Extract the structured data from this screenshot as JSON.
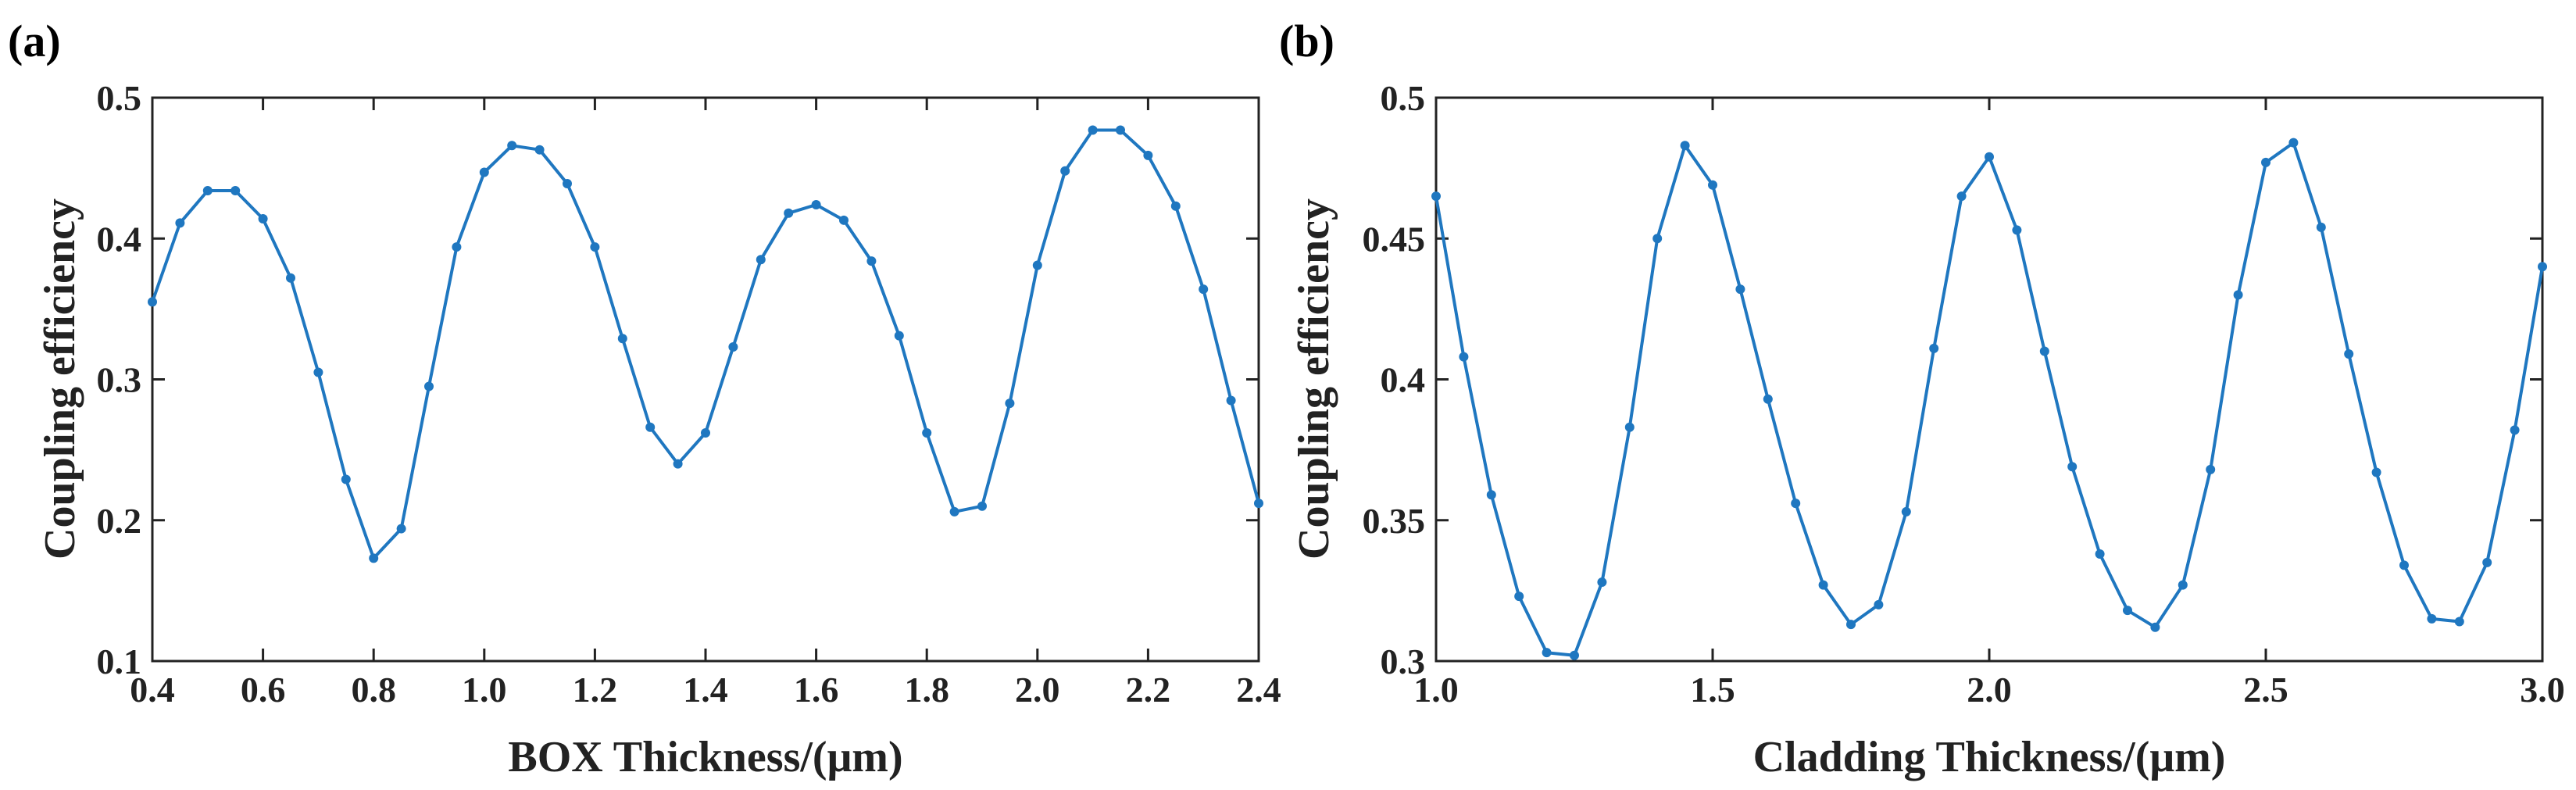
{
  "chart_data": [
    {
      "panel_label": "(a)",
      "type": "line",
      "title": "",
      "xlabel": "BOX Thickness/(μm)",
      "ylabel": "Coupling efficiency",
      "xlim": [
        0.4,
        2.4
      ],
      "ylim": [
        0.1,
        0.5
      ],
      "xticks": [
        0.4,
        0.6,
        0.8,
        1.0,
        1.2,
        1.4,
        1.6,
        1.8,
        2.0,
        2.2,
        2.4
      ],
      "xtick_labels": [
        "0.4",
        "0.6",
        "0.8",
        "1.0",
        "1.2",
        "1.4",
        "1.6",
        "1.8",
        "2.0",
        "2.2",
        "2.4"
      ],
      "yticks": [
        0.1,
        0.2,
        0.3,
        0.4,
        0.5
      ],
      "ytick_labels": [
        "0.1",
        "0.2",
        "0.3",
        "0.4",
        "0.5"
      ],
      "grid": false,
      "legend": "none",
      "color": "#1f77c0",
      "series": [
        {
          "name": "Coupling efficiency",
          "x": [
            0.4,
            0.45,
            0.5,
            0.55,
            0.6,
            0.65,
            0.7,
            0.75,
            0.8,
            0.85,
            0.9,
            0.95,
            1.0,
            1.05,
            1.1,
            1.15,
            1.2,
            1.25,
            1.3,
            1.35,
            1.4,
            1.45,
            1.5,
            1.55,
            1.6,
            1.65,
            1.7,
            1.75,
            1.8,
            1.85,
            1.9,
            1.95,
            2.0,
            2.05,
            2.1,
            2.15,
            2.2,
            2.25,
            2.3,
            2.35,
            2.4
          ],
          "y": [
            0.355,
            0.411,
            0.434,
            0.434,
            0.414,
            0.372,
            0.305,
            0.229,
            0.173,
            0.194,
            0.295,
            0.394,
            0.447,
            0.466,
            0.463,
            0.439,
            0.394,
            0.329,
            0.266,
            0.24,
            0.262,
            0.323,
            0.385,
            0.418,
            0.424,
            0.413,
            0.384,
            0.331,
            0.262,
            0.206,
            0.21,
            0.283,
            0.381,
            0.448,
            0.477,
            0.477,
            0.459,
            0.423,
            0.364,
            0.285,
            0.212
          ]
        }
      ]
    },
    {
      "panel_label": "(b)",
      "type": "line",
      "title": "",
      "xlabel": "Cladding Thickness/(μm)",
      "ylabel": "Coupling efficiency",
      "xlim": [
        1.0,
        3.0
      ],
      "ylim": [
        0.3,
        0.5
      ],
      "xticks": [
        1.0,
        1.5,
        2.0,
        2.5,
        3.0
      ],
      "xtick_labels": [
        "1.0",
        "1.5",
        "2.0",
        "2.5",
        "3.0"
      ],
      "yticks": [
        0.3,
        0.35,
        0.4,
        0.45,
        0.5
      ],
      "ytick_labels": [
        "0.3",
        "0.35",
        "0.4",
        "0.45",
        "0.5"
      ],
      "grid": false,
      "legend": "none",
      "color": "#1f77c0",
      "series": [
        {
          "name": "Coupling efficiency",
          "x": [
            1.0,
            1.05,
            1.1,
            1.15,
            1.2,
            1.25,
            1.3,
            1.35,
            1.4,
            1.45,
            1.5,
            1.55,
            1.6,
            1.65,
            1.7,
            1.75,
            1.8,
            1.85,
            1.9,
            1.95,
            2.0,
            2.05,
            2.1,
            2.15,
            2.2,
            2.25,
            2.3,
            2.35,
            2.4,
            2.45,
            2.5,
            2.55,
            2.6,
            2.65,
            2.7,
            2.75,
            2.8,
            2.85,
            2.9,
            2.95,
            3.0
          ],
          "y": [
            0.465,
            0.408,
            0.359,
            0.323,
            0.303,
            0.302,
            0.328,
            0.383,
            0.45,
            0.483,
            0.469,
            0.432,
            0.393,
            0.356,
            0.327,
            0.313,
            0.32,
            0.353,
            0.411,
            0.465,
            0.479,
            0.453,
            0.41,
            0.369,
            0.338,
            0.318,
            0.312,
            0.327,
            0.368,
            0.43,
            0.477,
            0.484,
            0.454,
            0.409,
            0.367,
            0.334,
            0.315,
            0.314,
            0.335,
            0.382,
            0.44
          ]
        }
      ]
    }
  ]
}
